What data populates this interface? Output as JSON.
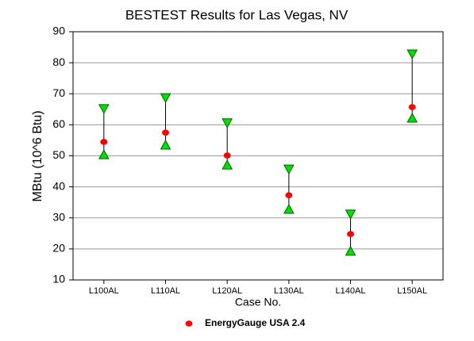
{
  "chart_data": {
    "type": "range",
    "title": "BESTEST Results for Las Vegas, NV",
    "x_label": "Case No.",
    "y_label": "MBtu (10^6 Btu)",
    "categories": [
      "L100AL",
      "L110AL",
      "L120AL",
      "L130AL",
      "L140AL",
      "L150AL"
    ],
    "high": [
      65,
      68.5,
      60.4,
      45.5,
      31,
      82.6
    ],
    "low": [
      50.6,
      53.7,
      47.3,
      33,
      19.5,
      62.4
    ],
    "range_color": "#00e000",
    "series": [
      {
        "name": "EnergyGauge USA 2.4",
        "color": "#ff0000",
        "values": [
          54.5,
          57.5,
          50.1,
          37.3,
          24.8,
          65.7
        ]
      }
    ],
    "ylim": [
      10,
      90
    ],
    "yticks": [
      10,
      20,
      30,
      40,
      50,
      60,
      70,
      80,
      90
    ],
    "grid": true
  }
}
